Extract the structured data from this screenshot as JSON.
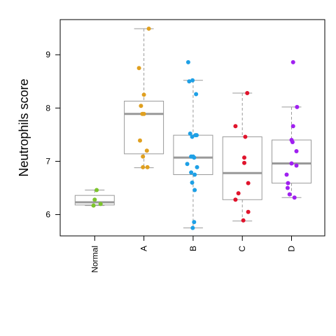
{
  "chart_data": {
    "type": "boxplot",
    "ylabel": "Neutrophils score",
    "xlabel": "",
    "title": "",
    "ylim": [
      5.6,
      9.66
    ],
    "yticks": [
      6,
      7,
      8,
      9
    ],
    "grid": false,
    "legend": "none",
    "categories": [
      "Normal",
      "A",
      "B",
      "C",
      "D"
    ],
    "colors": {
      "Normal": "#7cc42c",
      "A": "#e0a020",
      "B": "#1ea0e6",
      "C": "#e0142c",
      "D": "#a020f0",
      "box": "#9a9a9a",
      "median": "#999999",
      "axis": "#000000"
    },
    "boxes": [
      {
        "category": "Normal",
        "whisker_low": 6.17,
        "q1": 6.18,
        "median": 6.23,
        "q3": 6.36,
        "whisker_high": 6.46
      },
      {
        "category": "A",
        "whisker_low": 6.88,
        "q1": 7.14,
        "median": 7.89,
        "q3": 8.13,
        "whisker_high": 9.49
      },
      {
        "category": "B",
        "whisker_low": 5.75,
        "q1": 6.75,
        "median": 7.07,
        "q3": 7.49,
        "whisker_high": 8.52
      },
      {
        "category": "C",
        "whisker_low": 5.88,
        "q1": 6.28,
        "median": 6.78,
        "q3": 7.46,
        "whisker_high": 8.28
      },
      {
        "category": "D",
        "whisker_low": 6.32,
        "q1": 6.59,
        "median": 6.96,
        "q3": 7.4,
        "whisker_high": 8.02
      }
    ],
    "points": [
      {
        "category": "Normal",
        "jitter": 0.1,
        "y": 6.46
      },
      {
        "category": "Normal",
        "jitter": 0.0,
        "y": 6.28
      },
      {
        "category": "Normal",
        "jitter": 0.3,
        "y": 6.2
      },
      {
        "category": "Normal",
        "jitter": -0.06,
        "y": 6.17
      },
      {
        "category": "A",
        "jitter": 0.25,
        "y": 9.49
      },
      {
        "category": "A",
        "jitter": -0.25,
        "y": 8.75
      },
      {
        "category": "A",
        "jitter": 0.0,
        "y": 8.25
      },
      {
        "category": "A",
        "jitter": -0.15,
        "y": 8.04
      },
      {
        "category": "A",
        "jitter": -0.08,
        "y": 7.89
      },
      {
        "category": "A",
        "jitter": 0.0,
        "y": 7.89
      },
      {
        "category": "A",
        "jitter": -0.2,
        "y": 7.39
      },
      {
        "category": "A",
        "jitter": 0.15,
        "y": 7.2
      },
      {
        "category": "A",
        "jitter": -0.05,
        "y": 7.09
      },
      {
        "category": "A",
        "jitter": -0.05,
        "y": 6.89
      },
      {
        "category": "A",
        "jitter": 0.18,
        "y": 6.89
      },
      {
        "category": "B",
        "jitter": -0.25,
        "y": 8.86
      },
      {
        "category": "B",
        "jitter": -0.2,
        "y": 8.5
      },
      {
        "category": "B",
        "jitter": -0.03,
        "y": 8.52
      },
      {
        "category": "B",
        "jitter": 0.15,
        "y": 8.26
      },
      {
        "category": "B",
        "jitter": -0.15,
        "y": 7.52
      },
      {
        "category": "B",
        "jitter": 0.12,
        "y": 7.49
      },
      {
        "category": "B",
        "jitter": 0.18,
        "y": 7.49
      },
      {
        "category": "B",
        "jitter": -0.05,
        "y": 7.46
      },
      {
        "category": "B",
        "jitter": -0.1,
        "y": 7.09
      },
      {
        "category": "B",
        "jitter": 0.0,
        "y": 7.09
      },
      {
        "category": "B",
        "jitter": 0.05,
        "y": 7.07
      },
      {
        "category": "B",
        "jitter": -0.3,
        "y": 6.95
      },
      {
        "category": "B",
        "jitter": 0.2,
        "y": 6.89
      },
      {
        "category": "B",
        "jitter": -0.1,
        "y": 6.79
      },
      {
        "category": "B",
        "jitter": 0.08,
        "y": 6.75
      },
      {
        "category": "B",
        "jitter": -0.05,
        "y": 6.6
      },
      {
        "category": "B",
        "jitter": 0.08,
        "y": 6.46
      },
      {
        "category": "B",
        "jitter": 0.05,
        "y": 5.86
      },
      {
        "category": "B",
        "jitter": -0.02,
        "y": 5.75
      },
      {
        "category": "C",
        "jitter": 0.25,
        "y": 8.28
      },
      {
        "category": "C",
        "jitter": -0.35,
        "y": 7.66
      },
      {
        "category": "C",
        "jitter": 0.15,
        "y": 7.46
      },
      {
        "category": "C",
        "jitter": 0.1,
        "y": 7.07
      },
      {
        "category": "C",
        "jitter": 0.1,
        "y": 6.97
      },
      {
        "category": "C",
        "jitter": 0.3,
        "y": 6.59
      },
      {
        "category": "C",
        "jitter": -0.2,
        "y": 6.4
      },
      {
        "category": "C",
        "jitter": -0.35,
        "y": 6.28
      },
      {
        "category": "C",
        "jitter": 0.3,
        "y": 6.05
      },
      {
        "category": "C",
        "jitter": 0.05,
        "y": 5.89
      },
      {
        "category": "D",
        "jitter": 0.08,
        "y": 8.86
      },
      {
        "category": "D",
        "jitter": 0.28,
        "y": 8.02
      },
      {
        "category": "D",
        "jitter": 0.08,
        "y": 7.66
      },
      {
        "category": "D",
        "jitter": 0.0,
        "y": 7.4
      },
      {
        "category": "D",
        "jitter": 0.05,
        "y": 7.36
      },
      {
        "category": "D",
        "jitter": 0.25,
        "y": 7.19
      },
      {
        "category": "D",
        "jitter": 0.0,
        "y": 6.96
      },
      {
        "category": "D",
        "jitter": 0.25,
        "y": 6.92
      },
      {
        "category": "D",
        "jitter": -0.25,
        "y": 6.75
      },
      {
        "category": "D",
        "jitter": -0.18,
        "y": 6.59
      },
      {
        "category": "D",
        "jitter": -0.2,
        "y": 6.5
      },
      {
        "category": "D",
        "jitter": -0.1,
        "y": 6.38
      },
      {
        "category": "D",
        "jitter": 0.15,
        "y": 6.32
      }
    ]
  }
}
